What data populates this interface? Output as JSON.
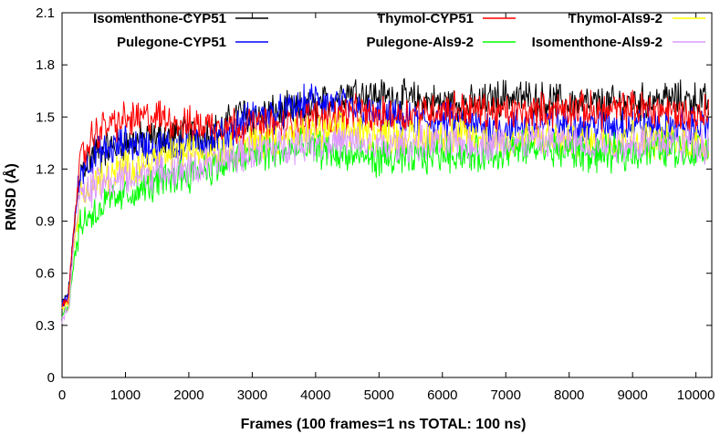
{
  "chart_data": {
    "type": "line",
    "xlabel": "Frames (100 frames=1 ns TOTAL: 100 ns)",
    "ylabel": "RMSD (Å)",
    "xlim": [
      0,
      10250
    ],
    "ylim": [
      0,
      2.1
    ],
    "x_ticks": [
      0,
      1000,
      2000,
      3000,
      4000,
      5000,
      6000,
      7000,
      8000,
      9000,
      10000
    ],
    "y_ticks": [
      0,
      0.3,
      0.6,
      0.9,
      1.2,
      1.5,
      1.8,
      2.1
    ],
    "y_tick_labels": [
      "0",
      "0.3",
      "0.6",
      "0.9",
      "1.2",
      "1.5",
      "1.8",
      "2.1"
    ],
    "grid": false,
    "legend_position": "top",
    "x": [
      0,
      100,
      200,
      300,
      500,
      700,
      1000,
      1500,
      2000,
      2500,
      2800,
      3000,
      3500,
      4000,
      4500,
      5000,
      5500,
      6000,
      6500,
      7000,
      7500,
      8000,
      8500,
      9000,
      9500,
      10000,
      10200
    ],
    "series": [
      {
        "name": "Isomenthone-CYP51",
        "color": "#000000",
        "values": [
          0.42,
          0.48,
          0.9,
          1.2,
          1.3,
          1.32,
          1.35,
          1.38,
          1.4,
          1.42,
          1.52,
          1.5,
          1.53,
          1.55,
          1.65,
          1.62,
          1.6,
          1.58,
          1.57,
          1.62,
          1.6,
          1.58,
          1.57,
          1.58,
          1.6,
          1.6,
          1.58
        ]
      },
      {
        "name": "Thymol-CYP51",
        "color": "#ff0000",
        "values": [
          0.4,
          0.45,
          0.95,
          1.25,
          1.4,
          1.45,
          1.48,
          1.5,
          1.45,
          1.46,
          1.45,
          1.45,
          1.44,
          1.5,
          1.52,
          1.5,
          1.52,
          1.55,
          1.54,
          1.52,
          1.53,
          1.55,
          1.53,
          1.55,
          1.54,
          1.5,
          1.55
        ]
      },
      {
        "name": "Thymol-Als9-2",
        "color": "#ffff00",
        "values": [
          0.38,
          0.42,
          0.8,
          1.05,
          1.12,
          1.15,
          1.2,
          1.25,
          1.3,
          1.3,
          1.32,
          1.35,
          1.38,
          1.4,
          1.42,
          1.4,
          1.38,
          1.4,
          1.38,
          1.36,
          1.38,
          1.35,
          1.36,
          1.38,
          1.36,
          1.35,
          1.33
        ]
      },
      {
        "name": "Pulegone-CYP51",
        "color": "#0000ff",
        "values": [
          0.41,
          0.47,
          0.92,
          1.2,
          1.28,
          1.3,
          1.35,
          1.32,
          1.35,
          1.38,
          1.45,
          1.5,
          1.52,
          1.6,
          1.55,
          1.5,
          1.47,
          1.48,
          1.45,
          1.44,
          1.45,
          1.46,
          1.45,
          1.46,
          1.44,
          1.45,
          1.44
        ]
      },
      {
        "name": "Pulegone-Als9-2",
        "color": "#00ff00",
        "values": [
          0.37,
          0.4,
          0.7,
          0.9,
          0.95,
          1.0,
          1.05,
          1.12,
          1.18,
          1.22,
          1.25,
          1.28,
          1.3,
          1.32,
          1.28,
          1.26,
          1.25,
          1.3,
          1.28,
          1.3,
          1.32,
          1.3,
          1.28,
          1.3,
          1.32,
          1.3,
          1.32
        ]
      },
      {
        "name": "Isomenthone-Als9-2",
        "color": "#dd99ff",
        "values": [
          0.35,
          0.38,
          0.85,
          1.05,
          1.1,
          1.12,
          1.15,
          1.18,
          1.2,
          1.24,
          1.28,
          1.3,
          1.34,
          1.36,
          1.35,
          1.33,
          1.34,
          1.35,
          1.34,
          1.35,
          1.36,
          1.35,
          1.34,
          1.35,
          1.36,
          1.35,
          1.34
        ]
      }
    ]
  }
}
